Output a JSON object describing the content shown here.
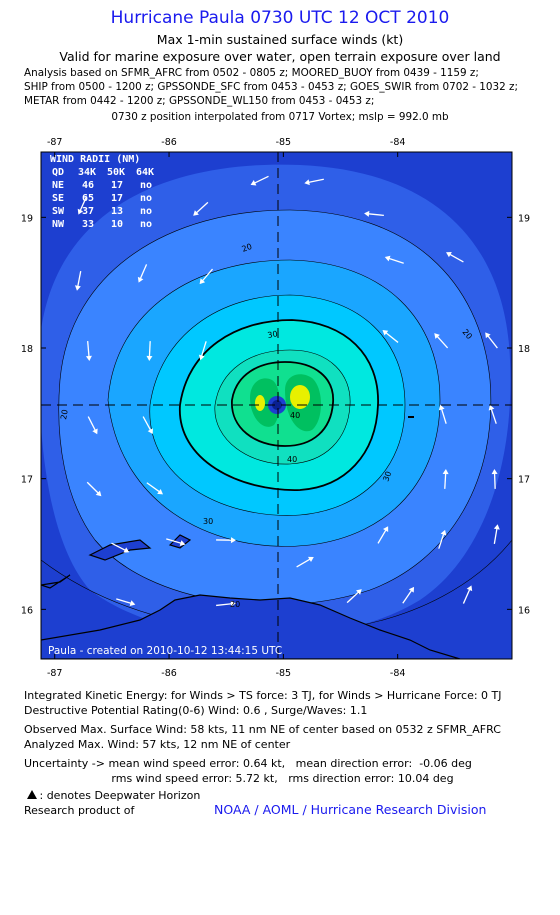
{
  "header": {
    "title": "Hurricane Paula 0730 UTC 12 OCT 2010",
    "subtitle": "Max 1-min sustained surface winds (kt)",
    "validity": "Valid for marine exposure over water, open terrain exposure over land",
    "analysis_lines": [
      "Analysis based on SFMR_AFRC from 0502 - 0805 z; MOORED_BUOY from 0439 - 1159 z;",
      "SHIP from 0500 - 1200 z; GPSSONDE_SFC from 0453 - 0453 z; GOES_SWIR from 0702 - 1032 z;",
      "METAR from 0442 - 1200 z; GPSSONDE_WL150 from 0453 - 0453 z;"
    ],
    "position_note": "0730 z position interpolated from 0717 Vortex; mslp = 992.0 mb"
  },
  "chart_data": {
    "type": "heatmap",
    "description_type": "wind field contour map",
    "x_ticks": [
      "-87",
      "-86",
      "-85",
      "-84"
    ],
    "y_ticks": [
      "16",
      "17",
      "18",
      "19"
    ],
    "xlim": [
      -87.12,
      -83.0
    ],
    "ylim": [
      15.62,
      19.5
    ],
    "center": {
      "lon": -85.0,
      "lat": 17.5
    },
    "contour_levels": [
      10,
      20,
      30,
      40,
      50
    ],
    "contour_labels": [
      "20",
      "20",
      "20",
      "20",
      "30",
      "30",
      "30",
      "40",
      "40"
    ],
    "max_wind_kt": 58,
    "colors": {
      "outer": "#1d3fd0",
      "l10": "#2f5fe8",
      "l20": "#3a84ff",
      "l30": "#1aa6ff",
      "l40": "#00c8ff",
      "l50": "#00e8e0",
      "l55": "#10e0a0",
      "core": "#00c060",
      "peak": "#e8f000"
    },
    "wind_radii": {
      "title": "WIND RADII (NM)",
      "header": [
        "QD",
        "34K",
        "50K",
        "64K"
      ],
      "rows": [
        [
          "NE",
          "46",
          "17",
          "no"
        ],
        [
          "SE",
          "65",
          "17",
          "no"
        ],
        [
          "SW",
          "37",
          "13",
          "no"
        ],
        [
          "NW",
          "33",
          "10",
          "no"
        ]
      ]
    },
    "footer_label": "Paula - created on 2010-10-12 13:44:15 UTC"
  },
  "info": {
    "ike": "Integrated Kinetic Energy:  for Winds > TS force: 3 TJ,  for Winds > Hurricane Force: 0 TJ",
    "dpr": "Destructive Potential Rating(0-6)   Wind: 0.6 , Surge/Waves: 1.1",
    "obs_max": "Observed Max. Surface Wind: 58 kts, 11 nm NE of center based on 0532 z SFMR_AFRC",
    "ana_max": "Analyzed Max. Wind: 57 kts, 12 nm NE of center",
    "uncert1": "Uncertainty -> mean wind speed error: 0.64 kt,   mean direction error:  -0.06 deg",
    "uncert2": "                         rms wind speed error: 5.72 kt,   rms direction error: 10.04 deg",
    "dwh_note": " : denotes Deepwater Horizon",
    "research": "Research product of",
    "org": "NOAA / AOML / Hurricane Research Division"
  }
}
